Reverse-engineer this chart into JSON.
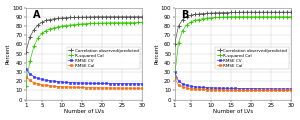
{
  "x": [
    1,
    2,
    3,
    4,
    5,
    6,
    7,
    8,
    9,
    10,
    11,
    12,
    13,
    14,
    15,
    16,
    17,
    18,
    19,
    20,
    21,
    22,
    23,
    24,
    25,
    26,
    27,
    28,
    29,
    30
  ],
  "panel_A": {
    "corr": [
      52,
      68,
      76,
      81,
      84,
      86,
      87,
      87.8,
      88.3,
      88.7,
      89,
      89.2,
      89.4,
      89.5,
      89.6,
      89.7,
      89.8,
      89.9,
      90,
      90,
      90,
      90,
      90,
      90,
      90,
      90,
      90,
      90,
      90,
      90
    ],
    "r2cal": [
      15,
      42,
      58,
      67,
      72,
      75,
      77,
      78,
      79,
      80,
      80.5,
      81,
      81.5,
      82,
      82.3,
      82.6,
      82.8,
      83,
      83.1,
      83.2,
      83.3,
      83.4,
      83.5,
      83.5,
      83.6,
      83.6,
      83.7,
      83.7,
      83.8,
      83.8
    ],
    "rmse_cv": [
      33,
      28,
      25,
      23,
      22,
      21,
      20.5,
      20,
      19.5,
      19,
      18.7,
      18.5,
      18.3,
      18.1,
      18,
      17.9,
      17.8,
      17.7,
      17.6,
      17.5,
      17.5,
      17.4,
      17.4,
      17.3,
      17.3,
      17.2,
      17.2,
      17.2,
      17.1,
      17.1
    ],
    "rmse_cal": [
      25,
      21,
      18,
      17,
      16,
      15.5,
      15,
      14.5,
      14.2,
      14,
      13.8,
      13.6,
      13.4,
      13.3,
      13.2,
      13.1,
      13,
      12.9,
      12.8,
      12.8,
      12.7,
      12.7,
      12.6,
      12.6,
      12.5,
      12.5,
      12.5,
      12.4,
      12.4,
      12.4
    ]
  },
  "panel_B": {
    "corr": [
      60,
      80,
      87,
      90,
      91.5,
      92.5,
      93,
      93.5,
      93.8,
      94,
      94.2,
      94.4,
      94.5,
      94.6,
      94.7,
      94.8,
      94.9,
      95,
      95,
      95,
      95,
      95,
      95,
      95,
      95,
      95,
      95,
      95,
      95,
      95
    ],
    "r2cal": [
      25,
      62,
      75,
      81,
      84,
      86,
      87,
      88,
      88.5,
      89,
      89.3,
      89.5,
      89.7,
      89.8,
      90,
      90,
      90,
      90,
      90,
      90,
      90,
      90,
      90,
      90,
      90,
      90,
      90,
      90,
      90,
      90
    ],
    "rmse_cv": [
      30,
      20,
      17,
      15.5,
      14.5,
      14,
      13.5,
      13.2,
      13,
      12.8,
      12.6,
      12.5,
      12.4,
      12.3,
      12.2,
      12.1,
      12,
      12,
      11.9,
      11.9,
      11.8,
      11.8,
      11.7,
      11.7,
      11.7,
      11.6,
      11.6,
      11.6,
      11.6,
      11.5
    ],
    "rmse_cal": [
      23,
      16,
      14,
      12.5,
      12,
      11.5,
      11.2,
      11,
      10.8,
      10.6,
      10.5,
      10.4,
      10.3,
      10.2,
      10.2,
      10.1,
      10.1,
      10,
      10,
      10,
      10,
      10,
      10,
      10,
      10,
      10,
      10,
      10,
      10,
      10
    ]
  },
  "legend_labels": [
    "Correlation observed/predicted",
    "R-squared Cal",
    "RMSE CV",
    "RMSE Cal"
  ],
  "colors": [
    "#555555",
    "#33cc00",
    "#3333ff",
    "#ff6600"
  ],
  "markers": [
    "+",
    "+",
    "s",
    "s"
  ],
  "xlabel": "Number of LVs",
  "ylabel": "Percent",
  "ylim": [
    0,
    100
  ],
  "xlim": [
    1,
    30
  ],
  "xticks": [
    1,
    5,
    10,
    15,
    20,
    25,
    30
  ],
  "yticks": [
    0,
    10,
    20,
    30,
    40,
    50,
    60,
    70,
    80,
    90,
    100
  ],
  "bg_color": "#ffffff",
  "fig_color": "#ffffff",
  "panel_labels": [
    "A",
    "B"
  ],
  "fontsize_tick": 4,
  "fontsize_label": 4,
  "fontsize_legend": 3,
  "fontsize_panel": 7,
  "linewidth": 0.5,
  "markersize_cross": 2.5,
  "markersize_sq": 2
}
